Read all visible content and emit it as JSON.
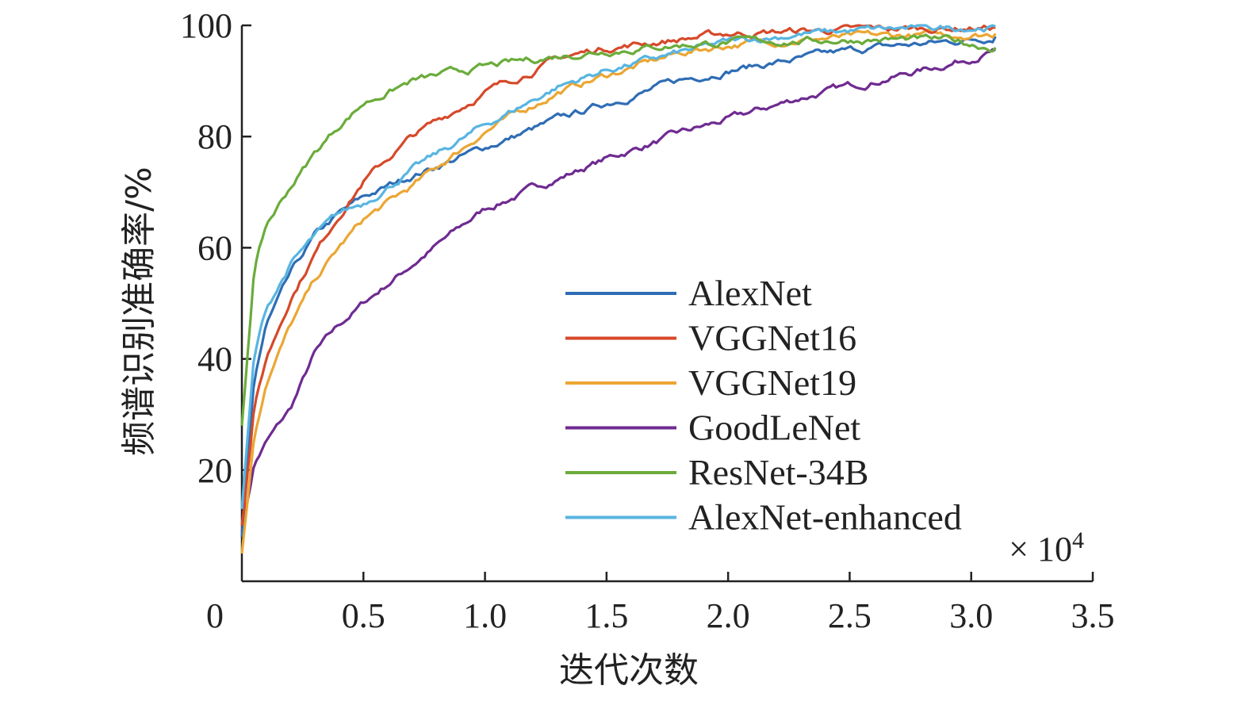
{
  "chart_data": {
    "type": "line",
    "xlabel": "迭代次数",
    "ylabel": "频谱识别准确率/%",
    "x_multiplier_base": "× 10",
    "x_multiplier_exp": "4",
    "xlim": [
      0,
      3.5
    ],
    "ylim": [
      0,
      100
    ],
    "x_ticks": [
      0,
      0.5,
      1.0,
      1.5,
      2.0,
      2.5,
      3.0,
      3.5
    ],
    "x_tick_labels": [
      "0",
      "0.5",
      "1.0",
      "1.5",
      "2.0",
      "2.5",
      "3.0",
      "3.5"
    ],
    "y_ticks": [
      20,
      40,
      60,
      80,
      100
    ],
    "y_tick_labels": [
      "20",
      "40",
      "60",
      "80",
      "100"
    ],
    "grid": false,
    "legend_position": "bottom-right",
    "x": [
      0,
      0.05,
      0.1,
      0.2,
      0.3,
      0.4,
      0.5,
      0.7,
      1.0,
      1.3,
      1.5,
      1.8,
      2.0,
      2.3,
      2.6,
      2.9,
      3.1
    ],
    "series": [
      {
        "name": "AlexNet",
        "color": "#2f6db5",
        "values": [
          8,
          36,
          46,
          55,
          62,
          66,
          69,
          73,
          78,
          83,
          86,
          90,
          92,
          94,
          96,
          97,
          98
        ]
      },
      {
        "name": "VGGNet16",
        "color": "#d6492a",
        "values": [
          10,
          31,
          40,
          51,
          59,
          66,
          72,
          80,
          88,
          94,
          96,
          97.5,
          98.5,
          99,
          99.3,
          99.5,
          99.6
        ]
      },
      {
        "name": "VGGNet19",
        "color": "#eba633",
        "values": [
          5,
          26,
          36,
          46,
          54,
          60,
          65,
          71,
          81,
          88,
          91,
          95,
          96.5,
          97.5,
          98,
          98.3,
          98.5
        ]
      },
      {
        "name": "GoodLeNet",
        "color": "#6f2b91",
        "values": [
          9,
          21,
          25,
          31,
          41,
          46,
          50,
          57,
          67,
          72.5,
          76,
          80.5,
          83,
          87,
          90,
          93,
          95.5
        ]
      },
      {
        "name": "ResNet-34B",
        "color": "#6aac3b",
        "values": [
          28,
          56,
          64,
          71,
          77,
          82,
          86,
          90,
          92.5,
          94.5,
          95.5,
          96.5,
          97,
          97.2,
          97.5,
          97.3,
          96
        ]
      },
      {
        "name": "AlexNet-enhanced",
        "color": "#58b5e1",
        "values": [
          13,
          40,
          49,
          57,
          62,
          66,
          68,
          74,
          82,
          89,
          92,
          95,
          97,
          98.5,
          99.2,
          99.6,
          99.8
        ]
      }
    ]
  }
}
